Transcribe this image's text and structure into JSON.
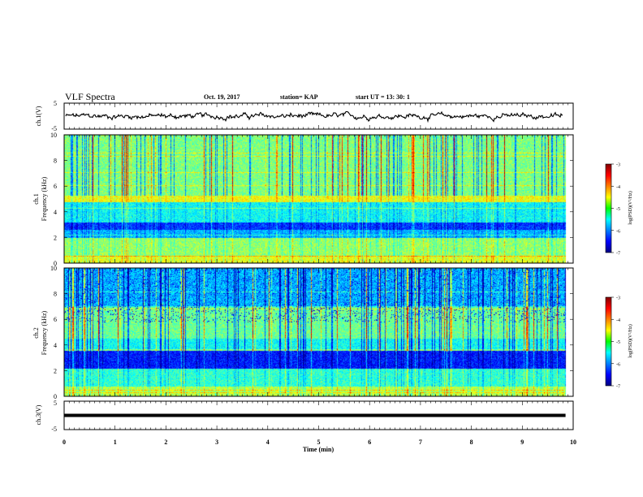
{
  "header": {
    "title": "VLF Spectra",
    "date": "Oct. 19, 2017",
    "station": "station= KAP",
    "start": "start  UT =   13: 30: 1"
  },
  "chart_data": [
    {
      "type": "line",
      "name": "ch1-waveform",
      "ylabel": "ch.1(V)",
      "ylim": [
        -5,
        5
      ],
      "xlim": [
        0,
        10
      ],
      "y_ticks": [
        "5",
        "-5"
      ],
      "approx_mean": 0,
      "approx_amplitude": 1.5
    },
    {
      "type": "heatmap",
      "name": "ch1-spectrogram",
      "ylabel_top": "ch.1",
      "ylabel": "Frequency  (kHz)",
      "ylim": [
        0,
        10
      ],
      "y_ticks": [
        "0",
        "2",
        "4",
        "6",
        "8",
        "10"
      ],
      "xlim": [
        0,
        9.85
      ],
      "colorbar": {
        "label": "log(PSD)(V²/Hz)",
        "range": [
          -7,
          -3
        ],
        "ticks": [
          "-3",
          "-4",
          "-5",
          "-6",
          "-7"
        ]
      }
    },
    {
      "type": "heatmap",
      "name": "ch2-spectrogram",
      "ylabel_top": "ch.2",
      "ylabel": "Frequency  (kHz)",
      "ylim": [
        0,
        10
      ],
      "y_ticks": [
        "0",
        "2",
        "4",
        "6",
        "8",
        "10"
      ],
      "xlim": [
        0,
        9.85
      ],
      "colorbar": {
        "label": "log(PSD)(V²/Hz)",
        "range": [
          -7,
          -3
        ],
        "ticks": [
          "-3",
          "-4",
          "-5",
          "-6",
          "-7"
        ]
      }
    },
    {
      "type": "line",
      "name": "ch3-waveform",
      "ylabel": "ch.3(V)",
      "ylim": [
        -5,
        5
      ],
      "xlim": [
        0,
        10
      ],
      "y_ticks": [
        "5",
        "-5"
      ],
      "constant_value": 0,
      "xlabel": "Time  (min)",
      "x_ticks": [
        "0",
        "1",
        "2",
        "3",
        "4",
        "5",
        "6",
        "7",
        "8",
        "9",
        "10"
      ]
    }
  ]
}
